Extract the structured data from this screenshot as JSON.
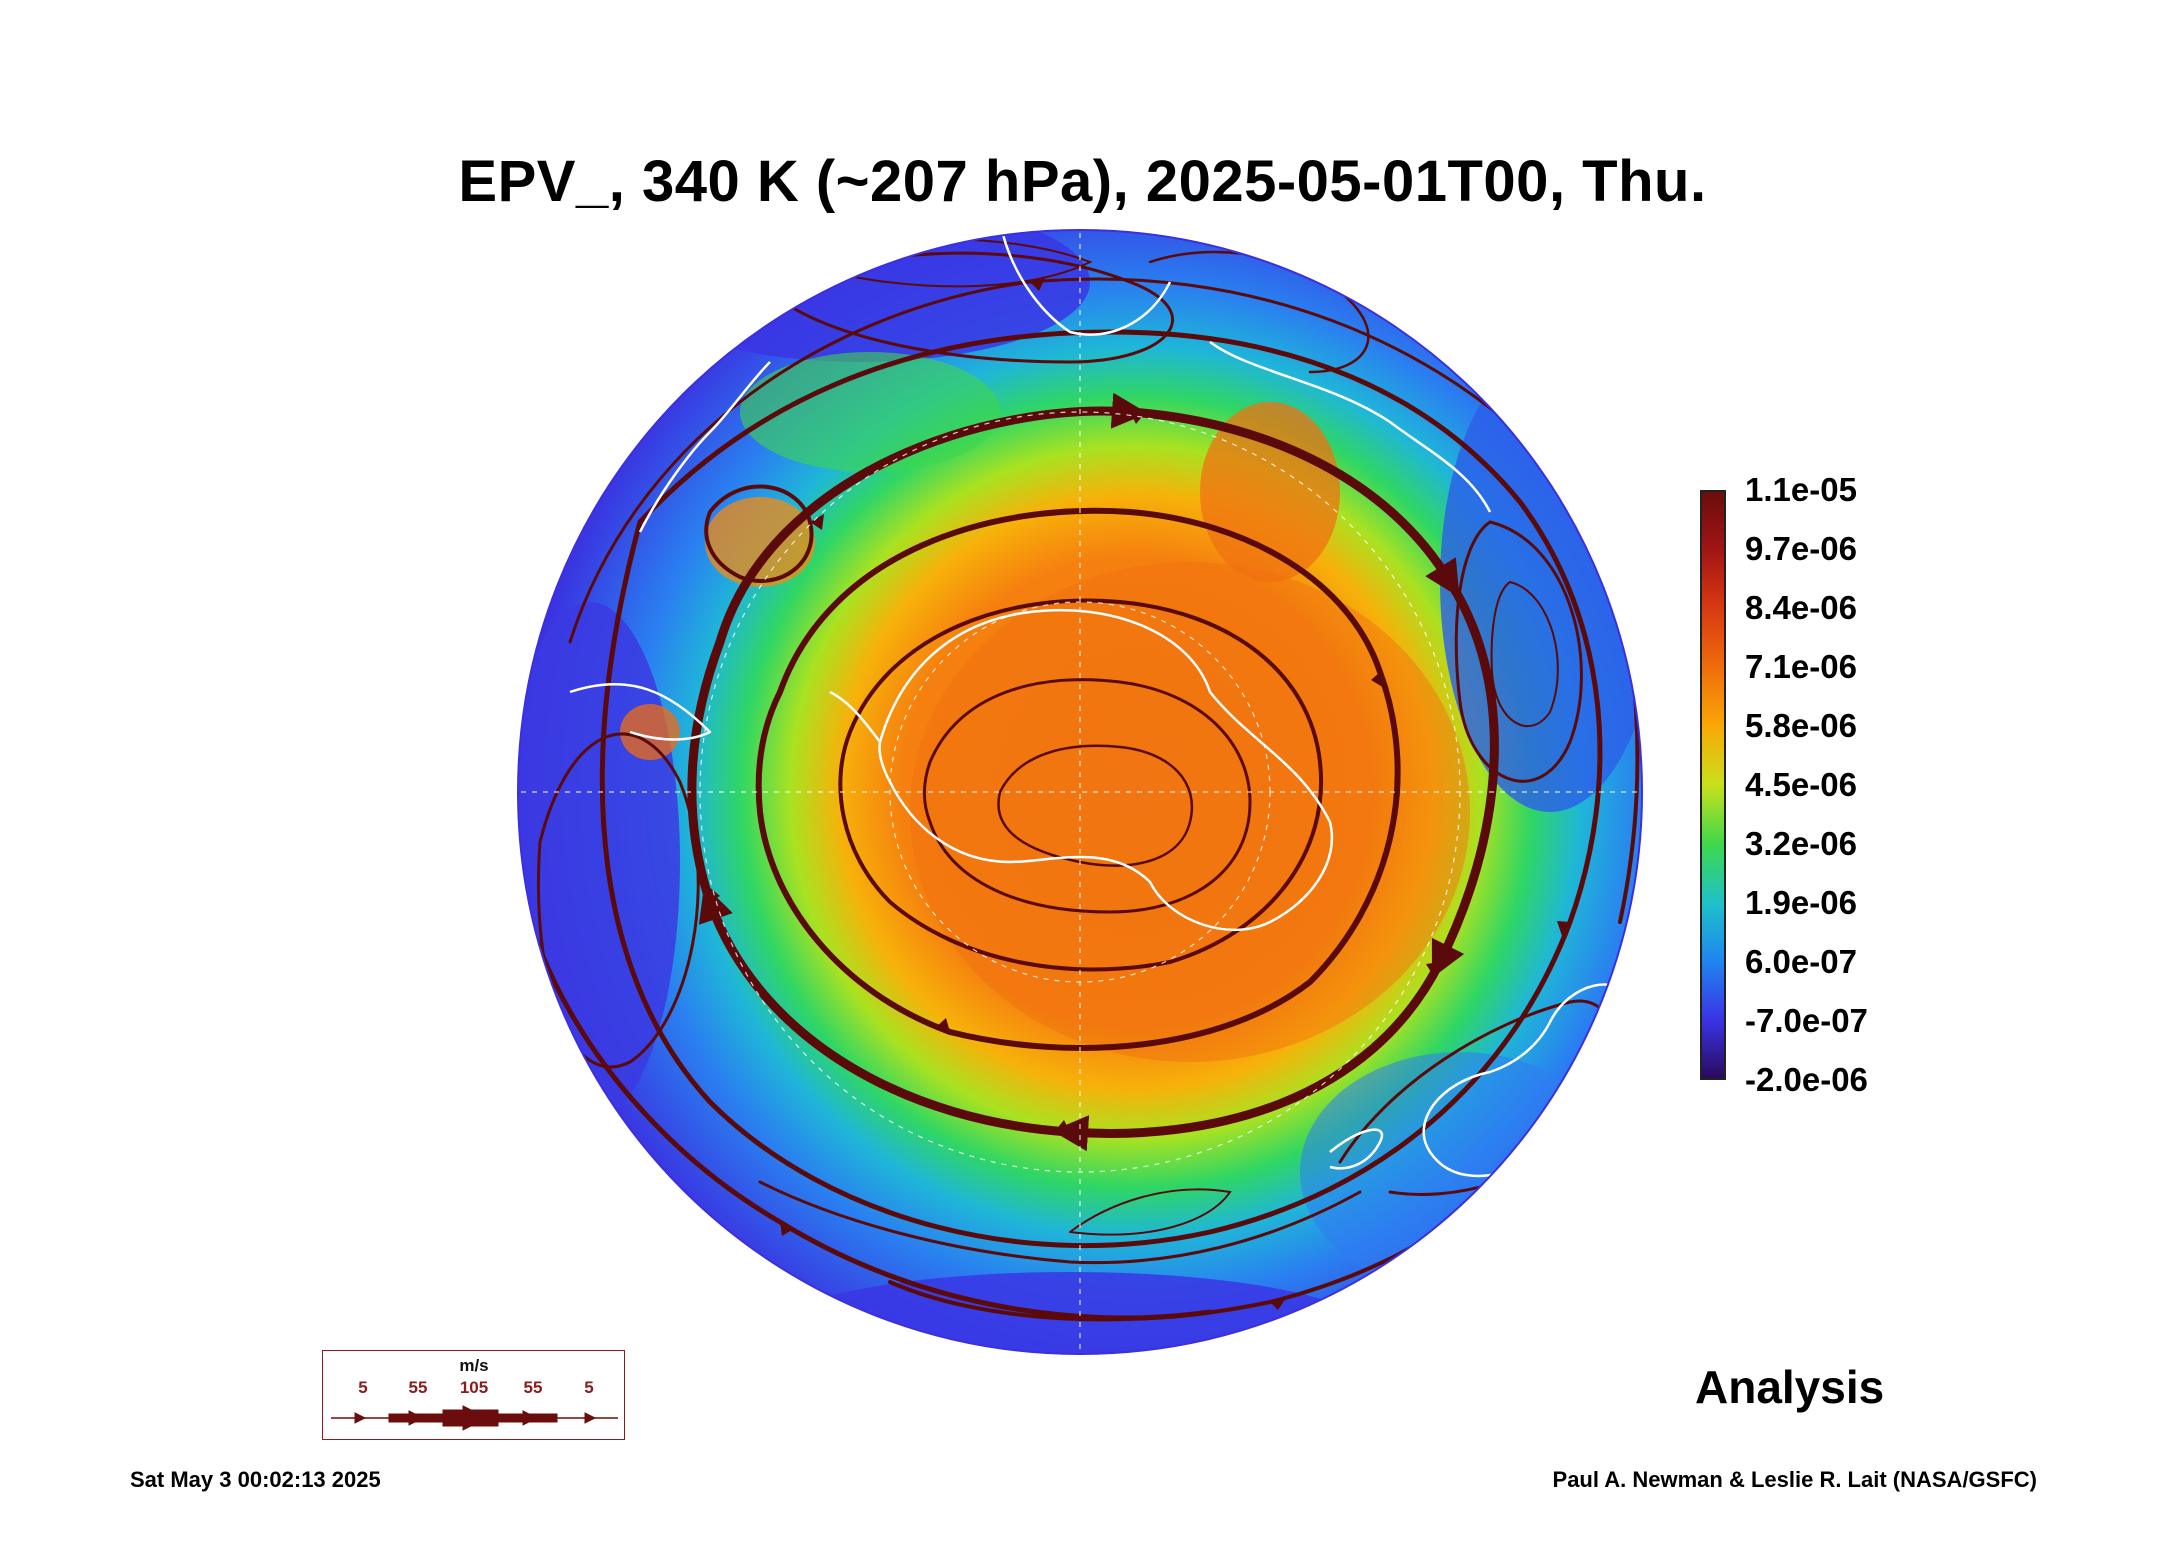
{
  "title": "EPV_, 340 K (~207 hPa), 2025-05-01T00, Thu.",
  "colorbar": {
    "labels": [
      "1.1e-05",
      "9.7e-06",
      "8.4e-06",
      "7.1e-06",
      "5.8e-06",
      "4.5e-06",
      "3.2e-06",
      "1.9e-06",
      "6.0e-07",
      "-7.0e-07",
      "-2.0e-06"
    ],
    "colors": [
      "#6b0d0d",
      "#a31515",
      "#d83a12",
      "#f06d0c",
      "#f9a806",
      "#c8e01c",
      "#3fd84a",
      "#1ec2c8",
      "#1f86ef",
      "#3a34e6",
      "#2a0a5c"
    ]
  },
  "map": {
    "projection": "south polar orthographic",
    "field": "EPV_",
    "streamline_color": "#5a0a0a",
    "coastline_color": "#ffffff"
  },
  "wind_legend": {
    "unit": "m/s",
    "values": [
      "5",
      "55",
      "105",
      "55",
      "5"
    ]
  },
  "analysis_label": "Analysis",
  "footer": {
    "timestamp": "Sat May  3 00:02:13 2025",
    "credit": "Paul A. Newman & Leslie R. Lait (NASA/GSFC)"
  }
}
